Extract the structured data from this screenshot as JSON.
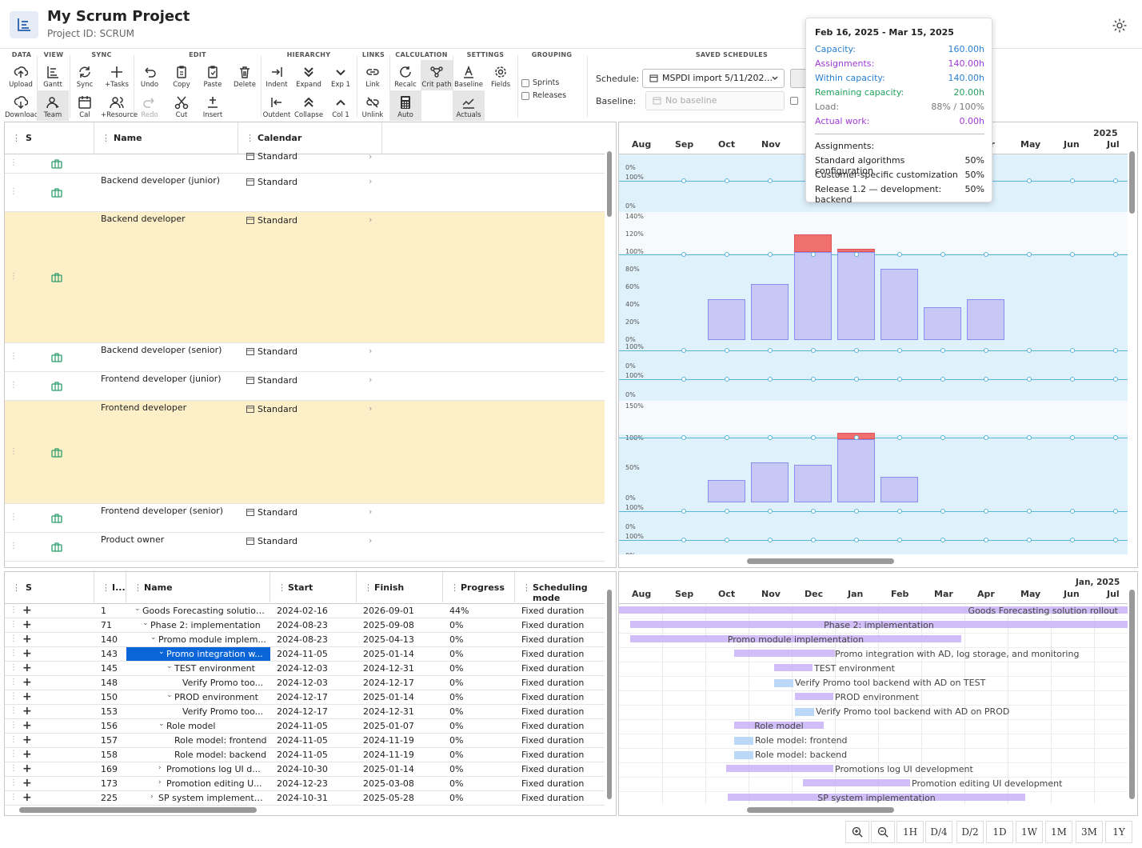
{
  "header": {
    "title": "My Scrum Project",
    "subtitle": "Project ID: SCRUM"
  },
  "toolbar": {
    "groups": [
      "DATA",
      "VIEW",
      "SYNC",
      "EDIT",
      "HIERARCHY",
      "LINKS",
      "CALCULATION",
      "SETTINGS",
      "GROUPING",
      "SAVED SCHEDULES"
    ],
    "buttons_top": [
      "Upload",
      "Gantt",
      "Sync",
      "+Tasks",
      "Undo",
      "Copy",
      "Paste",
      "Delete",
      "Indent",
      "Expand",
      "Exp 1",
      "Link",
      "Recalc",
      "Crit path",
      "Baseline",
      "Fields"
    ],
    "buttons_bottom": [
      "Download",
      "Team",
      "Cal",
      "+Resource",
      "Redo",
      "Cut",
      "Insert",
      "Outdent",
      "Collapse",
      "Col 1",
      "Unlink",
      "Auto",
      "Actuals"
    ],
    "grouping": {
      "sprints": "Sprints",
      "releases": "Releases"
    },
    "schedule": {
      "label": "Schedule:",
      "value": "MSPDI import 5/11/202...",
      "baseline_label": "Baseline:",
      "baseline_value": "No baseline"
    }
  },
  "resource_grid": {
    "columns": [
      "S",
      "Name",
      "Calendar"
    ],
    "rows": [
      {
        "name": "",
        "calendar": "Standard"
      },
      {
        "name": "Backend developer (junior)",
        "calendar": "Standard"
      },
      {
        "name": "Backend developer",
        "calendar": "Standard"
      },
      {
        "name": "Backend developer (senior)",
        "calendar": "Standard"
      },
      {
        "name": "Frontend developer (junior)",
        "calendar": "Standard"
      },
      {
        "name": "Frontend developer",
        "calendar": "Standard"
      },
      {
        "name": "Frontend developer (senior)",
        "calendar": "Standard"
      },
      {
        "name": "Product owner",
        "calendar": "Standard"
      }
    ]
  },
  "timeline": {
    "year_top": "2025",
    "year_bottom": "Jan, 2025",
    "months": [
      "Aug",
      "Sep",
      "Oct",
      "Nov",
      "Dec",
      "Jan",
      "Feb",
      "Mar",
      "Apr",
      "May",
      "Jun",
      "Jul"
    ]
  },
  "load_chart": {
    "labels_row2": [
      "140%",
      "120%",
      "100%",
      "80%",
      "60%",
      "40%",
      "20%",
      "0%"
    ],
    "labels_row5": [
      "150%",
      "100%",
      "50%",
      "0%"
    ],
    "backend_developer": [
      0,
      0,
      0,
      46,
      64,
      120,
      104,
      81,
      37,
      46,
      0,
      0
    ],
    "frontend_developer": [
      0,
      0,
      0,
      36,
      63,
      60,
      110,
      40,
      0,
      0,
      0,
      0
    ]
  },
  "tooltip": {
    "range": "Feb 16, 2025 - Mar 15, 2025",
    "stats": [
      {
        "k": "Capacity:",
        "v": "160.00h",
        "color": "#2a7fd0"
      },
      {
        "k": "Assignments:",
        "v": "140.00h",
        "color": "#a23ad6"
      },
      {
        "k": "Within capacity:",
        "v": "140.00h",
        "color": "#2a7fd0"
      },
      {
        "k": "Remaining capacity:",
        "v": "20.00h",
        "color": "#23a05a"
      },
      {
        "k": "Load:",
        "v": "88% / 100%",
        "color": "#777"
      },
      {
        "k": "Actual work:",
        "v": "0.00h",
        "color": "#a23ad6"
      }
    ],
    "assign_title": "Assignments:",
    "assignments": [
      {
        "k": "Standard algorithms configuration",
        "v": "50%"
      },
      {
        "k": "Customer-specific customization",
        "v": "50%"
      },
      {
        "k": "Release 1.2 — development: backend",
        "v": "50%"
      }
    ]
  },
  "task_grid": {
    "columns": [
      "S",
      "I...",
      "Name",
      "Start",
      "Finish",
      "Progress",
      "Scheduling mode"
    ],
    "rows": [
      {
        "id": "1",
        "name": "Goods Forecasting solution r...",
        "start": "2024-02-16",
        "finish": "2026-09-01",
        "progress": "44%",
        "mode": "Fixed duration",
        "indent": 0,
        "exp": "v"
      },
      {
        "id": "71",
        "name": "Phase 2: implementation",
        "start": "2024-08-23",
        "finish": "2025-09-08",
        "progress": "0%",
        "mode": "Fixed duration",
        "indent": 1,
        "exp": "v"
      },
      {
        "id": "140",
        "name": "Promo module implem...",
        "start": "2024-08-23",
        "finish": "2025-04-13",
        "progress": "0%",
        "mode": "Fixed duration",
        "indent": 2,
        "exp": "v"
      },
      {
        "id": "143",
        "name": "Promo integration w...",
        "start": "2024-11-05",
        "finish": "2025-01-14",
        "progress": "0%",
        "mode": "Fixed duration",
        "indent": 3,
        "exp": "v"
      },
      {
        "id": "145",
        "name": "TEST environment",
        "start": "2024-12-03",
        "finish": "2024-12-31",
        "progress": "0%",
        "mode": "Fixed duration",
        "indent": 4,
        "exp": "v"
      },
      {
        "id": "148",
        "name": "Verify Promo too...",
        "start": "2024-12-03",
        "finish": "2024-12-17",
        "progress": "0%",
        "mode": "Fixed duration",
        "indent": 5,
        "exp": ""
      },
      {
        "id": "150",
        "name": "PROD environment",
        "start": "2024-12-17",
        "finish": "2025-01-14",
        "progress": "0%",
        "mode": "Fixed duration",
        "indent": 4,
        "exp": "v"
      },
      {
        "id": "153",
        "name": "Verify Promo too...",
        "start": "2024-12-17",
        "finish": "2024-12-31",
        "progress": "0%",
        "mode": "Fixed duration",
        "indent": 5,
        "exp": ""
      },
      {
        "id": "156",
        "name": "Role model",
        "start": "2024-11-05",
        "finish": "2025-01-07",
        "progress": "0%",
        "mode": "Fixed duration",
        "indent": 3,
        "exp": "v"
      },
      {
        "id": "157",
        "name": "Role model: frontend",
        "start": "2024-11-05",
        "finish": "2024-11-19",
        "progress": "0%",
        "mode": "Fixed duration",
        "indent": 4,
        "exp": ""
      },
      {
        "id": "158",
        "name": "Role model: backend",
        "start": "2024-11-05",
        "finish": "2024-11-19",
        "progress": "0%",
        "mode": "Fixed duration",
        "indent": 4,
        "exp": ""
      },
      {
        "id": "169",
        "name": "Promotions log UI d...",
        "start": "2024-10-30",
        "finish": "2025-01-14",
        "progress": "0%",
        "mode": "Fixed duration",
        "indent": 3,
        "exp": ">"
      },
      {
        "id": "173",
        "name": "Promotion editing U...",
        "start": "2024-12-23",
        "finish": "2025-03-08",
        "progress": "0%",
        "mode": "Fixed duration",
        "indent": 3,
        "exp": ">"
      },
      {
        "id": "225",
        "name": "SP system implementat...",
        "start": "2024-10-31",
        "finish": "2025-05-28",
        "progress": "0%",
        "mode": "Fixed duration",
        "indent": 2,
        "exp": ">"
      }
    ]
  },
  "gantt_labels": [
    "Goods Forecasting solution rollout",
    "Phase 2: implementation",
    "Promo module implementation",
    "Promo integration with AD, log storage, and monitoring",
    "TEST environment",
    "Verify Promo tool backend with AD on TEST",
    "PROD environment",
    "Verify Promo tool backend with AD on PROD",
    "Role model",
    "Role model: frontend",
    "Role model: backend",
    "Promotions log UI development",
    "Promotion editing UI development",
    "SP system implementation"
  ],
  "zoom": [
    "1H",
    "D/4",
    "D/2",
    "1D",
    "1W",
    "1M",
    "3M",
    "1Y"
  ]
}
